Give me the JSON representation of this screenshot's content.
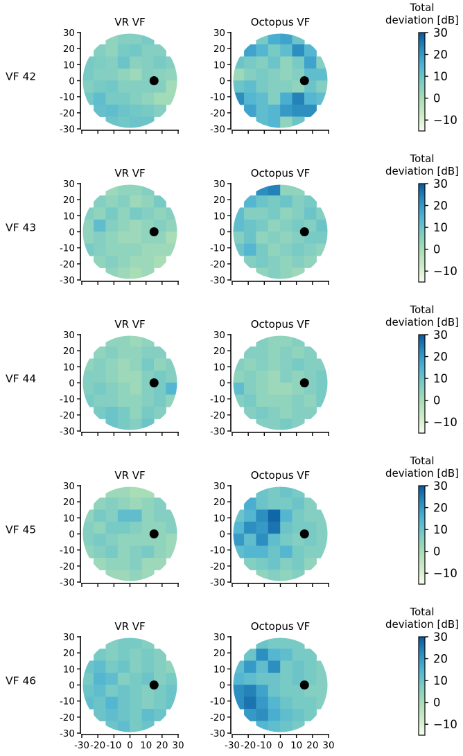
{
  "figure": {
    "column_titles": [
      "VR VF",
      "Octopus VF"
    ],
    "colorbar": {
      "label_line1": "Total",
      "label_line2": "deviation [dB]",
      "ticks": [
        30,
        20,
        10,
        0,
        -10
      ],
      "tick_labels": [
        "30",
        "20",
        "10",
        "0",
        "−10"
      ],
      "range": [
        -15,
        30
      ],
      "colormap": [
        "#f7fcf0",
        "#ccebc5",
        "#a8ddb5",
        "#7bccc4",
        "#4eb3d3",
        "#2b8cbe",
        "#08589e"
      ]
    }
  },
  "chart_data": {
    "type": "heatmap",
    "description_of_values": "Total deviation (dB) per visual-field test location",
    "axes": {
      "xlim": [
        -30,
        30
      ],
      "ylim": [
        -30,
        30
      ],
      "x_tick_labels": [
        "-30",
        "-20",
        "-10",
        "0",
        "10",
        "20",
        "30"
      ],
      "y_tick_labels": [
        "30",
        "20",
        "10",
        "0",
        "-10",
        "-20",
        "-30"
      ],
      "blind_spot_marker": [
        15,
        0
      ]
    },
    "field_rows": [
      {
        "row_label": "VF 42",
        "vr": [
          [
            4,
            6,
            6,
            8
          ],
          [
            6,
            4,
            8,
            9,
            6,
            6
          ],
          [
            8,
            7,
            6,
            10,
            5,
            6,
            8,
            6
          ],
          [
            8,
            6,
            6,
            4,
            2,
            6,
            5,
            4
          ],
          [
            6,
            8,
            9,
            6,
            6,
            6,
            6,
            1
          ],
          [
            9,
            12,
            8,
            8,
            6,
            4,
            1,
            1
          ],
          [
            11,
            12,
            10,
            9,
            8,
            6
          ],
          [
            10,
            9,
            10,
            10
          ]
        ],
        "octopus": [
          [
            8,
            16,
            18,
            10
          ],
          [
            18,
            14,
            8,
            12,
            22,
            14
          ],
          [
            10,
            8,
            6,
            10,
            4,
            8,
            18,
            6
          ],
          [
            2,
            6,
            8,
            6,
            4,
            6,
            12,
            12
          ],
          [
            10,
            12,
            8,
            6,
            6,
            4,
            10,
            6
          ],
          [
            22,
            14,
            12,
            6,
            16,
            24,
            14,
            12
          ],
          [
            18,
            12,
            14,
            20,
            22,
            22
          ],
          [
            12,
            14,
            4,
            10
          ]
        ]
      },
      {
        "row_label": "VF 43",
        "vr": [
          [
            2,
            4,
            4,
            6
          ],
          [
            6,
            4,
            6,
            2,
            4,
            8
          ],
          [
            6,
            4,
            8,
            4,
            8,
            6,
            4,
            6
          ],
          [
            4,
            12,
            6,
            4,
            2,
            4,
            6,
            4
          ],
          [
            4,
            6,
            4,
            2,
            2,
            4,
            4,
            0
          ],
          [
            8,
            6,
            4,
            4,
            4,
            2,
            2,
            2
          ],
          [
            4,
            6,
            4,
            2,
            2,
            0
          ],
          [
            4,
            2,
            0,
            2
          ]
        ],
        "octopus": [
          [
            22,
            24,
            4,
            4
          ],
          [
            14,
            10,
            8,
            10,
            6,
            8
          ],
          [
            12,
            6,
            6,
            8,
            4,
            6,
            10,
            6
          ],
          [
            12,
            10,
            8,
            4,
            6,
            8,
            6,
            10
          ],
          [
            6,
            10,
            4,
            6,
            4,
            6,
            8,
            8
          ],
          [
            10,
            14,
            8,
            4,
            6,
            8,
            6,
            4
          ],
          [
            6,
            8,
            6,
            4,
            6,
            4
          ],
          [
            4,
            6,
            4,
            2
          ]
        ]
      },
      {
        "row_label": "VF 44",
        "vr": [
          [
            4,
            4,
            2,
            4
          ],
          [
            4,
            6,
            4,
            4,
            6,
            6
          ],
          [
            4,
            6,
            4,
            2,
            4,
            8,
            4,
            6
          ],
          [
            6,
            6,
            4,
            2,
            2,
            6,
            8,
            6
          ],
          [
            6,
            8,
            6,
            4,
            2,
            6,
            8,
            14
          ],
          [
            8,
            6,
            6,
            4,
            4,
            6,
            8,
            4
          ],
          [
            8,
            10,
            8,
            4,
            8,
            6
          ],
          [
            10,
            8,
            6,
            10
          ]
        ],
        "octopus": [
          [
            6,
            4,
            4,
            6
          ],
          [
            6,
            6,
            4,
            6,
            4,
            6
          ],
          [
            6,
            4,
            6,
            4,
            6,
            8,
            6,
            6
          ],
          [
            4,
            6,
            4,
            2,
            6,
            4,
            6,
            8
          ],
          [
            12,
            6,
            4,
            2,
            2,
            4,
            6,
            8
          ],
          [
            6,
            8,
            4,
            4,
            4,
            6,
            4,
            8
          ],
          [
            6,
            8,
            6,
            4,
            6,
            6
          ],
          [
            6,
            6,
            8,
            6
          ]
        ]
      },
      {
        "row_label": "VF 45",
        "vr": [
          [
            2,
            2,
            0,
            0
          ],
          [
            4,
            6,
            4,
            2,
            4,
            6
          ],
          [
            4,
            8,
            6,
            12,
            12,
            4,
            6,
            6
          ],
          [
            6,
            4,
            8,
            8,
            6,
            4,
            4,
            6
          ],
          [
            6,
            8,
            6,
            4,
            4,
            4,
            4,
            2
          ],
          [
            4,
            6,
            8,
            4,
            6,
            8,
            4,
            2
          ],
          [
            2,
            4,
            4,
            6,
            2,
            2
          ],
          [
            2,
            2,
            4,
            2
          ]
        ],
        "octopus": [
          [
            10,
            8,
            10,
            8
          ],
          [
            16,
            10,
            8,
            8,
            10,
            6
          ],
          [
            10,
            14,
            22,
            28,
            14,
            8,
            6,
            6
          ],
          [
            14,
            22,
            20,
            26,
            10,
            8,
            8,
            6
          ],
          [
            20,
            12,
            22,
            12,
            8,
            6,
            8,
            6
          ],
          [
            12,
            14,
            14,
            10,
            14,
            8,
            6,
            6
          ],
          [
            6,
            8,
            10,
            6,
            8,
            4
          ],
          [
            4,
            6,
            4,
            6
          ]
        ]
      },
      {
        "row_label": "VF 46",
        "vr": [
          [
            6,
            8,
            8,
            6
          ],
          [
            8,
            6,
            8,
            6,
            8,
            6
          ],
          [
            10,
            12,
            8,
            10,
            6,
            8,
            6,
            4
          ],
          [
            8,
            14,
            12,
            6,
            8,
            10,
            6,
            8
          ],
          [
            10,
            12,
            8,
            10,
            8,
            6,
            8,
            10
          ],
          [
            12,
            10,
            14,
            10,
            8,
            6,
            8,
            10
          ],
          [
            10,
            12,
            10,
            8,
            12,
            10
          ],
          [
            10,
            12,
            8,
            10
          ]
        ],
        "octopus": [
          [
            10,
            8,
            8,
            8
          ],
          [
            10,
            22,
            14,
            12,
            8,
            8
          ],
          [
            12,
            20,
            12,
            22,
            8,
            10,
            8,
            6
          ],
          [
            14,
            12,
            10,
            10,
            8,
            10,
            8,
            6
          ],
          [
            22,
            24,
            18,
            10,
            8,
            8,
            6,
            6
          ],
          [
            22,
            26,
            20,
            14,
            10,
            8,
            8,
            6
          ],
          [
            20,
            22,
            16,
            12,
            10,
            8
          ],
          [
            14,
            12,
            10,
            8
          ]
        ]
      }
    ]
  }
}
